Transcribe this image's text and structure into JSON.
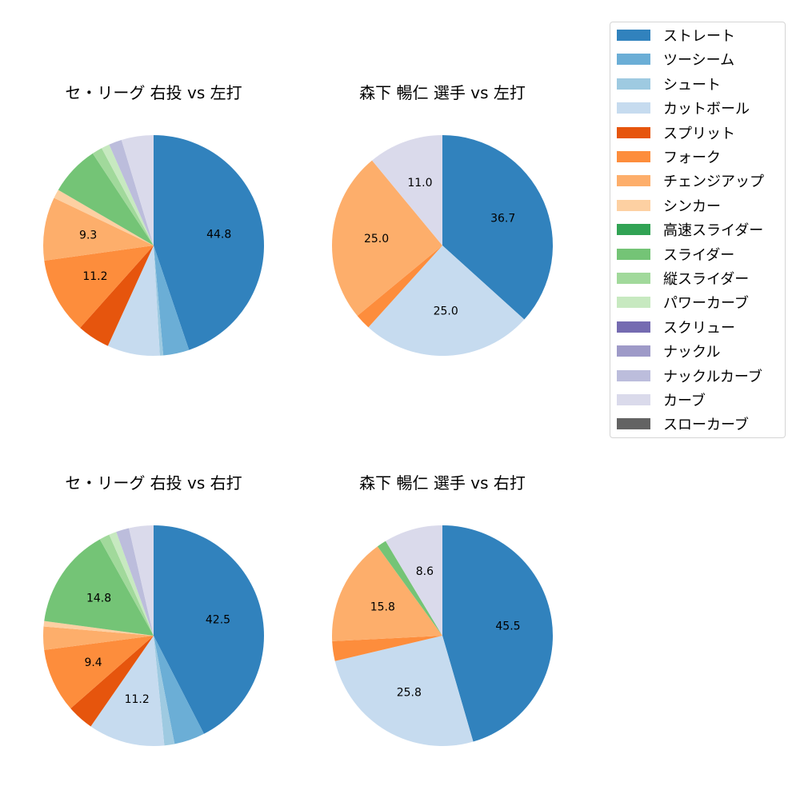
{
  "legend": {
    "items": [
      {
        "label": "ストレート",
        "color": "#3182bd"
      },
      {
        "label": "ツーシーム",
        "color": "#6baed6"
      },
      {
        "label": "シュート",
        "color": "#9ecae1"
      },
      {
        "label": "カットボール",
        "color": "#c6dbef"
      },
      {
        "label": "スプリット",
        "color": "#e6550d"
      },
      {
        "label": "フォーク",
        "color": "#fd8d3c"
      },
      {
        "label": "チェンジアップ",
        "color": "#fdae6b"
      },
      {
        "label": "シンカー",
        "color": "#fdd0a2"
      },
      {
        "label": "高速スライダー",
        "color": "#31a354"
      },
      {
        "label": "スライダー",
        "color": "#74c476"
      },
      {
        "label": "縦スライダー",
        "color": "#a1d99b"
      },
      {
        "label": "パワーカーブ",
        "color": "#c7e9c0"
      },
      {
        "label": "スクリュー",
        "color": "#756bb1"
      },
      {
        "label": "ナックル",
        "color": "#9e9ac8"
      },
      {
        "label": "ナックルカーブ",
        "color": "#bcbddc"
      },
      {
        "label": "カーブ",
        "color": "#dadaeb"
      },
      {
        "label": "スローカーブ",
        "color": "#636363"
      }
    ]
  },
  "chart_data": [
    {
      "type": "pie",
      "title": "セ・リーグ 右投 vs 左打",
      "categories": [
        "ストレート",
        "ツーシーム",
        "シュート",
        "カットボール",
        "スプリット",
        "フォーク",
        "チェンジアップ",
        "シンカー",
        "高速スライダー",
        "スライダー",
        "縦スライダー",
        "パワーカーブ",
        "スクリュー",
        "ナックル",
        "ナックルカーブ",
        "カーブ",
        "スローカーブ"
      ],
      "values": [
        44.8,
        3.8,
        0.5,
        7.7,
        4.8,
        11.2,
        9.3,
        1.3,
        0,
        7.3,
        1.5,
        1.2,
        0,
        0,
        1.9,
        4.7,
        0
      ],
      "labels_shown": {
        "ストレート": "44.8",
        "フォーク": "11.2",
        "チェンジアップ": "9.3"
      },
      "start_angle": 90,
      "direction": "clockwise",
      "label_threshold": 8
    },
    {
      "type": "pie",
      "title": "森下 暢仁 選手 vs 左打",
      "categories": [
        "ストレート",
        "ツーシーム",
        "シュート",
        "カットボール",
        "スプリット",
        "フォーク",
        "チェンジアップ",
        "シンカー",
        "高速スライダー",
        "スライダー",
        "縦スライダー",
        "パワーカーブ",
        "スクリュー",
        "ナックル",
        "ナックルカーブ",
        "カーブ",
        "スローカーブ"
      ],
      "values": [
        36.7,
        0,
        0,
        25.0,
        0,
        2.3,
        25.0,
        0,
        0,
        0,
        0,
        0,
        0,
        0,
        0,
        11.0,
        0
      ],
      "labels_shown": {
        "ストレート": "36.7",
        "カットボール": "25.0",
        "チェンジアップ": "25.0",
        "カーブ": "11.0"
      },
      "start_angle": 90,
      "direction": "clockwise",
      "label_threshold": 8
    },
    {
      "type": "pie",
      "title": "セ・リーグ 右投 vs 右打",
      "categories": [
        "ストレート",
        "ツーシーム",
        "シュート",
        "カットボール",
        "スプリット",
        "フォーク",
        "チェンジアップ",
        "シンカー",
        "高速スライダー",
        "スライダー",
        "縦スライダー",
        "パワーカーブ",
        "スクリュー",
        "ナックル",
        "ナックルカーブ",
        "カーブ",
        "スローカーブ"
      ],
      "values": [
        42.5,
        4.5,
        1.5,
        11.2,
        3.9,
        9.4,
        3.4,
        0.8,
        0,
        14.8,
        1.5,
        1.1,
        0,
        0,
        1.9,
        3.6,
        0
      ],
      "labels_shown": {
        "ストレート": "42.5",
        "カットボール": "11.2",
        "フォーク": "9.4",
        "スライダー": "14.8"
      },
      "start_angle": 90,
      "direction": "clockwise",
      "label_threshold": 8
    },
    {
      "type": "pie",
      "title": "森下 暢仁 選手 vs 右打",
      "categories": [
        "ストレート",
        "ツーシーム",
        "シュート",
        "カットボール",
        "スプリット",
        "フォーク",
        "チェンジアップ",
        "シンカー",
        "高速スライダー",
        "スライダー",
        "縦スライダー",
        "パワーカーブ",
        "スクリュー",
        "ナックル",
        "ナックルカーブ",
        "カーブ",
        "スローカーブ"
      ],
      "values": [
        45.5,
        0,
        0,
        25.8,
        0,
        2.9,
        15.8,
        0,
        0,
        1.4,
        0,
        0,
        0,
        0,
        0,
        8.6,
        0
      ],
      "labels_shown": {
        "ストレート": "45.5",
        "カットボール": "25.8",
        "チェンジアップ": "15.8",
        "カーブ": "8.6"
      },
      "start_angle": 90,
      "direction": "clockwise",
      "label_threshold": 8
    }
  ]
}
